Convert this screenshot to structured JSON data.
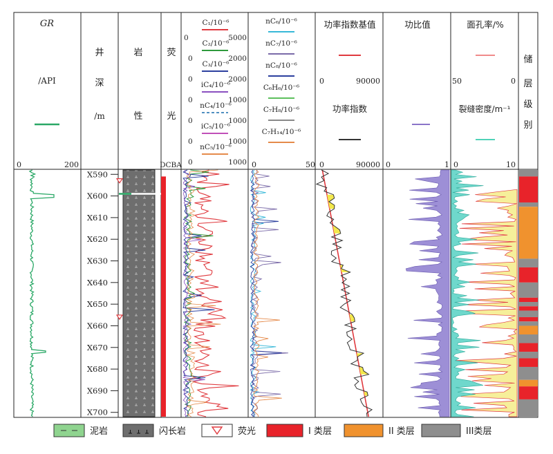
{
  "columns": {
    "gr": {
      "title": "GR",
      "unit": "/API",
      "scale_min": "0",
      "scale_max": "200",
      "color": "#2aa866"
    },
    "depth": {
      "title_chars": [
        "井",
        "深",
        "/m"
      ]
    },
    "lith": {
      "title_chars": [
        "岩",
        "性"
      ]
    },
    "fluor": {
      "title_chars": [
        "荧",
        "光"
      ],
      "scale_label": "DCBA"
    },
    "gas1": {
      "entries": [
        {
          "label": "C₁/10⁻⁶",
          "min": "0",
          "max": "5000",
          "color": "#e0393e",
          "dashed": false
        },
        {
          "label": "C₂/10⁻⁶",
          "min": "0",
          "max": "2000",
          "color": "#2e9a3c",
          "dashed": false
        },
        {
          "label": "C₃/10⁻⁶",
          "min": "0",
          "max": "2000",
          "color": "#2b3f9e",
          "dashed": false
        },
        {
          "label": "iC₄/10⁻⁶",
          "min": "0",
          "max": "1000",
          "color": "#8a4fc0",
          "dashed": false
        },
        {
          "label": "nC₄/10⁻⁶",
          "min": "0",
          "max": "1000",
          "color": "#4f8fc0",
          "dashed": true
        },
        {
          "label": "iC₅/10⁻⁶",
          "min": "0",
          "max": "1000",
          "color": "#c04fb8",
          "dashed": false
        },
        {
          "label": "nC₅/10⁻⁶",
          "min": "0",
          "max": "1000",
          "color": "#e58a4a",
          "dashed": false
        }
      ]
    },
    "gas2": {
      "entries": [
        {
          "label": "nC₆/10⁻⁶",
          "color": "#36b8d8"
        },
        {
          "label": "nC₇/10⁻⁶",
          "color": "#7a6aa8"
        },
        {
          "label": "nC₈/10⁻⁶",
          "color": "#2b3f9e"
        },
        {
          "label": "C₆H₆/10⁻⁶",
          "color": "#5cbf5c"
        },
        {
          "label": "C₇H₈/10⁻⁶",
          "color": "#888888"
        },
        {
          "label": "C₇H₁₄/10⁻⁶",
          "color": "#e58a4a"
        }
      ],
      "scale_min": "0",
      "scale_max": "50"
    },
    "power": {
      "base_title": "功率指数基值",
      "base_min": "0",
      "base_max": "90000",
      "base_color": "#e0393e",
      "index_title": "功率指数",
      "index_min": "0",
      "index_max": "90000",
      "index_color": "#333333"
    },
    "ratio": {
      "title": "功比值",
      "scale_min": "0",
      "scale_max": "1",
      "color": "#8a74c8"
    },
    "poro": {
      "title": "面孔率/%",
      "scale_left": "50",
      "scale_right": "0",
      "color": "#f08a8a",
      "frac_title": "裂缝密度/m⁻¹",
      "frac_min": "0",
      "frac_max": "10",
      "frac_color": "#4fd2b8"
    },
    "grade": {
      "title_chars": [
        "储",
        "层",
        "级",
        "别"
      ]
    }
  },
  "legend": [
    {
      "label": "泥岩",
      "icon": "mudstone-swatch"
    },
    {
      "label": "闪长岩",
      "icon": "diorite-swatch"
    },
    {
      "label": "荧光",
      "icon": "triangle-icon"
    },
    {
      "label": "I 类层",
      "icon": "red-swatch",
      "color": "#e8232a"
    },
    {
      "label": "II 类层",
      "icon": "orange-swatch",
      "color": "#f0922e"
    },
    {
      "label": "III类层",
      "icon": "gray-swatch",
      "color": "#8e8e8e"
    }
  ],
  "chart_data": {
    "type": "line",
    "depth_range": [
      588,
      702
    ],
    "depth_ticks": [
      "X590",
      "X600",
      "X610",
      "X620",
      "X630",
      "X640",
      "X650",
      "X660",
      "X670",
      "X680",
      "X690",
      "X700"
    ],
    "fluorescence_marks": [
      593,
      656
    ],
    "grade_intervals": [
      {
        "from": 588,
        "to": 591,
        "grade": "III"
      },
      {
        "from": 591,
        "to": 603,
        "grade": "I"
      },
      {
        "from": 603,
        "to": 605,
        "grade": "III"
      },
      {
        "from": 605,
        "to": 629,
        "grade": "II"
      },
      {
        "from": 629,
        "to": 633,
        "grade": "III"
      },
      {
        "from": 633,
        "to": 640,
        "grade": "I"
      },
      {
        "from": 640,
        "to": 647,
        "grade": "III"
      },
      {
        "from": 647,
        "to": 649,
        "grade": "I"
      },
      {
        "from": 649,
        "to": 651,
        "grade": "III"
      },
      {
        "from": 651,
        "to": 653,
        "grade": "I"
      },
      {
        "from": 653,
        "to": 656,
        "grade": "III"
      },
      {
        "from": 656,
        "to": 658,
        "grade": "I"
      },
      {
        "from": 658,
        "to": 660,
        "grade": "III"
      },
      {
        "from": 660,
        "to": 664,
        "grade": "II"
      },
      {
        "from": 664,
        "to": 668,
        "grade": "III"
      },
      {
        "from": 668,
        "to": 672,
        "grade": "I"
      },
      {
        "from": 672,
        "to": 675,
        "grade": "III"
      },
      {
        "from": 675,
        "to": 679,
        "grade": "I"
      },
      {
        "from": 679,
        "to": 685,
        "grade": "III"
      },
      {
        "from": 685,
        "to": 688,
        "grade": "II"
      },
      {
        "from": 688,
        "to": 694,
        "grade": "I"
      },
      {
        "from": 694,
        "to": 702,
        "grade": "III"
      }
    ],
    "power_base": {
      "start": [
        588,
        8000
      ],
      "end": [
        702,
        72000
      ]
    }
  }
}
